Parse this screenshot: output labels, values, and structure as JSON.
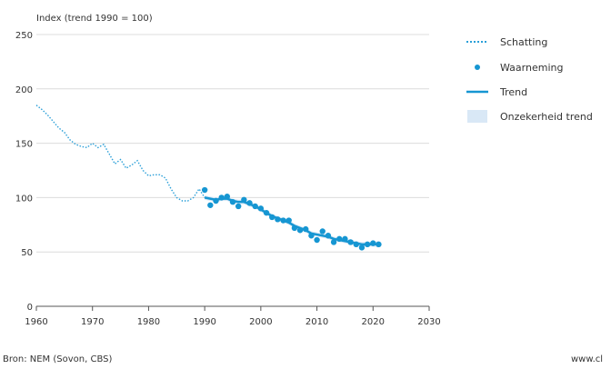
{
  "chart_data": {
    "type": "line",
    "ylabel": "Index (trend 1990 = 100)",
    "xlim": [
      1960,
      2030
    ],
    "ylim": [
      0,
      250
    ],
    "x_ticks": [
      1960,
      1970,
      1980,
      1990,
      2000,
      2010,
      2020,
      2030
    ],
    "y_ticks": [
      0,
      50,
      100,
      150,
      200,
      250
    ],
    "grid": "horizontal",
    "legend_position": "right",
    "colors": {
      "schatting": "#2a9fd8",
      "waarneming": "#1696d2",
      "trend": "#1696d2",
      "onzekerheid": "#d9e8f6",
      "grid": "#dcdcdc",
      "axis": "#555555"
    },
    "series": [
      {
        "name": "Schatting",
        "style": "dotted-line",
        "x": [
          1960,
          1961,
          1962,
          1963,
          1964,
          1965,
          1966,
          1967,
          1968,
          1969,
          1970,
          1971,
          1972,
          1973,
          1974,
          1975,
          1976,
          1977,
          1978,
          1979,
          1980,
          1981,
          1982,
          1983,
          1984,
          1985,
          1986,
          1987,
          1988,
          1989,
          1990
        ],
        "y": [
          185,
          181,
          176,
          170,
          164,
          160,
          153,
          149,
          147,
          146,
          150,
          146,
          149,
          140,
          131,
          135,
          127,
          130,
          134,
          125,
          120,
          121,
          121,
          118,
          108,
          100,
          97,
          97,
          100,
          108,
          100
        ]
      },
      {
        "name": "Waarneming",
        "style": "dots",
        "x": [
          1990,
          1991,
          1992,
          1993,
          1994,
          1995,
          1996,
          1997,
          1998,
          1999,
          2000,
          2001,
          2002,
          2003,
          2004,
          2005,
          2006,
          2007,
          2008,
          2009,
          2010,
          2011,
          2012,
          2013,
          2014,
          2015,
          2016,
          2017,
          2018,
          2019,
          2020,
          2021
        ],
        "y": [
          107,
          93,
          97,
          100,
          101,
          96,
          92,
          98,
          95,
          92,
          90,
          86,
          82,
          80,
          79,
          79,
          72,
          70,
          71,
          65,
          61,
          69,
          65,
          59,
          62,
          62,
          59,
          57,
          54,
          57,
          58,
          57
        ]
      },
      {
        "name": "Trend",
        "style": "solid-line",
        "x": [
          1990,
          1991,
          1992,
          1993,
          1994,
          1995,
          1996,
          1997,
          1998,
          1999,
          2000,
          2001,
          2002,
          2003,
          2004,
          2005,
          2006,
          2007,
          2008,
          2009,
          2010,
          2011,
          2012,
          2013,
          2014,
          2015,
          2016,
          2017,
          2018,
          2019,
          2020,
          2021
        ],
        "y": [
          100,
          99,
          98,
          99,
          99,
          97,
          96,
          96,
          94,
          92,
          89,
          86,
          83,
          81,
          79,
          77,
          74,
          72,
          70,
          67,
          66,
          65,
          64,
          62,
          61,
          60,
          59,
          58,
          57,
          57,
          57,
          57
        ]
      },
      {
        "name": "Onzekerheid trend",
        "style": "band",
        "x": [
          1990,
          1991,
          1992,
          1993,
          1994,
          1995,
          1996,
          1997,
          1998,
          1999,
          2000,
          2001,
          2002,
          2003,
          2004,
          2005,
          2006,
          2007,
          2008,
          2009,
          2010,
          2011,
          2012,
          2013,
          2014,
          2015,
          2016,
          2017,
          2018,
          2019,
          2020,
          2021
        ],
        "lower": [
          98,
          97,
          96,
          97,
          97,
          95,
          94,
          94,
          92,
          90,
          87,
          84,
          81,
          79,
          77,
          75,
          72,
          70,
          68,
          65,
          64,
          63,
          62,
          60,
          59,
          58,
          57,
          56,
          55,
          55,
          55,
          54
        ],
        "upper": [
          102,
          101,
          100,
          101,
          101,
          99,
          98,
          98,
          96,
          94,
          91,
          88,
          85,
          83,
          81,
          79,
          76,
          74,
          72,
          69,
          68,
          67,
          66,
          64,
          63,
          62,
          61,
          60,
          59,
          59,
          59,
          60
        ]
      }
    ]
  },
  "footer": {
    "source": "Bron: NEM (Sovon, CBS)",
    "website": "www.cl"
  }
}
